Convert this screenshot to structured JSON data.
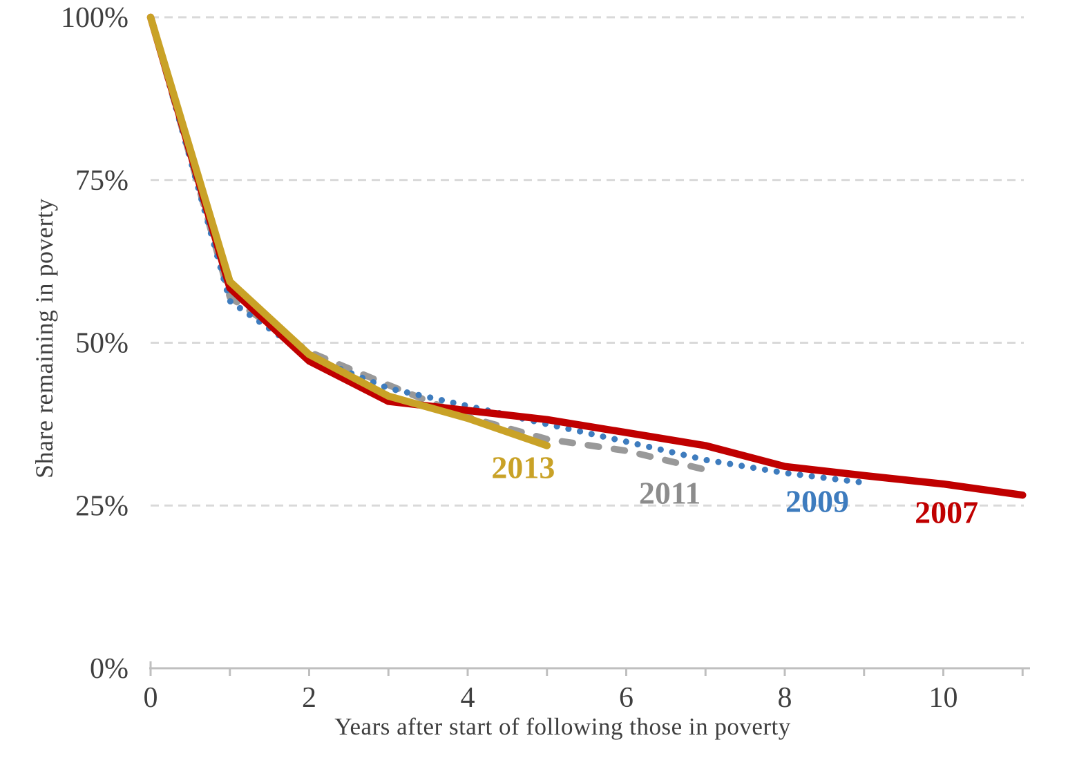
{
  "chart_data": {
    "type": "line",
    "title": "",
    "xlabel": "Years after start of following those in poverty",
    "ylabel": "Share remaining in poverty",
    "xlim": [
      0,
      11.1
    ],
    "ylim": [
      0,
      100
    ],
    "grid": "horizontal dashed lines at 25/50/75/100",
    "legend_position": "inline labels next to line ends",
    "y_ticks": [
      {
        "value": 100,
        "text": "100%"
      },
      {
        "value": 75,
        "text": "75%"
      },
      {
        "value": 50,
        "text": "50%"
      },
      {
        "value": 25,
        "text": "25%"
      },
      {
        "value": 0,
        "text": "0%"
      }
    ],
    "x_minor_tick_years": [
      0,
      1,
      2,
      3,
      4,
      5,
      6,
      7,
      8,
      9,
      10,
      11
    ],
    "x_tick_labels": [
      {
        "year": 0,
        "text": "0"
      },
      {
        "year": 2,
        "text": "2"
      },
      {
        "year": 4,
        "text": "4"
      },
      {
        "year": 6,
        "text": "6"
      },
      {
        "year": 8,
        "text": "8"
      },
      {
        "year": 10,
        "text": "10"
      }
    ],
    "series": [
      {
        "name": "2011",
        "style": "dashed",
        "color": "#999999",
        "label_color": "#8c8c8c",
        "years": [
          0,
          1,
          2,
          3,
          4,
          5,
          6,
          7
        ],
        "values": [
          100,
          57.0,
          48.6,
          43.5,
          38.6,
          35.2,
          33.4,
          30.5
        ],
        "label": {
          "text": "2011",
          "x": 6.55,
          "y": 27.0
        }
      },
      {
        "name": "2009",
        "style": "dotted",
        "color": "#3e7cbe",
        "label_color": "#3e7cbe",
        "years": [
          0,
          1,
          2,
          3,
          4,
          5,
          6,
          7,
          8,
          9
        ],
        "values": [
          100,
          56.4,
          47.9,
          43.0,
          40.3,
          37.5,
          34.8,
          32.0,
          30.0,
          28.5
        ],
        "label": {
          "text": "2009",
          "x": 8.41,
          "y": 25.7
        }
      },
      {
        "name": "2007",
        "style": "solid",
        "color": "#c00000",
        "label_color": "#c00000",
        "years": [
          0,
          1,
          2,
          3,
          4,
          5,
          6,
          7,
          8,
          9,
          10,
          11
        ],
        "values": [
          100,
          58.4,
          47.2,
          41.0,
          39.6,
          38.2,
          36.2,
          34.2,
          31.0,
          29.6,
          28.3,
          26.6
        ],
        "label": {
          "text": "2007",
          "x": 10.04,
          "y": 24.0
        }
      },
      {
        "name": "2013",
        "style": "solid",
        "color": "#c9a227",
        "label_color": "#c9a227",
        "years": [
          0,
          1,
          2,
          3,
          4,
          5
        ],
        "values": [
          100,
          59.4,
          48.2,
          41.8,
          38.4,
          34.2
        ],
        "label": {
          "text": "2013",
          "x": 4.7,
          "y": 30.9
        }
      }
    ],
    "colors": {
      "axis_line": "#bfbfbf",
      "grid_line": "#d9d9d9",
      "tick_text": "#3f3f3f"
    }
  }
}
